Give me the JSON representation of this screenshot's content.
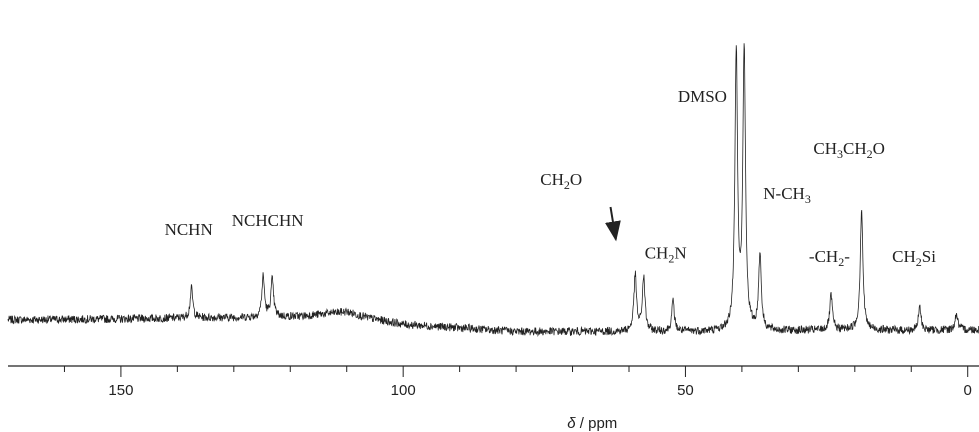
{
  "chart_data": {
    "type": "line",
    "title": "",
    "xlabel_symbol": "δ",
    "xlabel_unit": "/ ppm",
    "xlim": [
      170,
      -2
    ],
    "x_reversed": true,
    "grid": false,
    "legend": "none",
    "line_color": "#222222",
    "x_ticks": [
      150,
      100,
      50,
      0
    ],
    "x_minor_ticks": [
      160,
      140,
      130,
      120,
      110,
      90,
      80,
      70,
      60,
      40,
      30,
      20,
      10
    ],
    "baseline_points": [
      [
        170,
        0.18
      ],
      [
        150,
        0.19
      ],
      [
        140,
        0.2
      ],
      [
        125,
        0.21
      ],
      [
        118,
        0.22
      ],
      [
        112,
        0.26
      ],
      [
        110,
        0.27
      ],
      [
        106,
        0.2
      ],
      [
        100,
        0.13
      ],
      [
        80,
        0.05
      ],
      [
        65,
        0.05
      ],
      [
        55,
        0.05
      ],
      [
        42,
        0.05
      ],
      [
        30,
        0.06
      ],
      [
        20,
        0.07
      ],
      [
        10,
        0.06
      ],
      [
        0,
        0.07
      ],
      [
        -2,
        0.07
      ]
    ],
    "peaks": [
      {
        "ppm": 137.5,
        "height": 0.33
      },
      {
        "ppm": 124.8,
        "height": 0.45
      },
      {
        "ppm": 123.2,
        "height": 0.41
      },
      {
        "ppm": 58.9,
        "height": 0.62
      },
      {
        "ppm": 57.4,
        "height": 0.6
      },
      {
        "ppm": 52.2,
        "height": 0.33
      },
      {
        "ppm": 41.0,
        "height": 3.1
      },
      {
        "ppm": 39.6,
        "height": 3.1
      },
      {
        "ppm": 36.8,
        "height": 0.85
      },
      {
        "ppm": 24.2,
        "height": 0.38
      },
      {
        "ppm": 18.8,
        "height": 1.35
      },
      {
        "ppm": 8.5,
        "height": 0.26
      },
      {
        "ppm": 2.0,
        "height": 0.18
      }
    ],
    "annotations": [
      {
        "label_main": "NCHN",
        "label_sub": "",
        "label_tail": "",
        "ppm": 138,
        "level": 1.12
      },
      {
        "label_main": "NCHCHN",
        "label_sub": "",
        "label_tail": "",
        "ppm": 124,
        "level": 1.22
      },
      {
        "label_main": "CH",
        "label_sub": "2",
        "label_tail": "O",
        "ppm": 72,
        "level": 1.68
      },
      {
        "label_main": "CH",
        "label_sub": "2",
        "label_tail": "N",
        "ppm": 53.5,
        "level": 0.86
      },
      {
        "label_main": "DMSO",
        "label_sub": "",
        "label_tail": "",
        "ppm": 47,
        "level": 2.6
      },
      {
        "label_main": "N-CH",
        "label_sub": "3",
        "label_tail": "",
        "ppm": 32,
        "level": 1.52
      },
      {
        "label_main": "-CH",
        "label_sub": "2",
        "label_tail": "-",
        "ppm": 24.5,
        "level": 0.82
      },
      {
        "label_main": "CH",
        "label_sub": "3",
        "label_tail": "CH",
        "label_sub2": "2",
        "label_tail2": "O",
        "ppm": 21,
        "level": 2.02
      },
      {
        "label_main": "CH",
        "label_sub": "2",
        "label_tail": "Si",
        "ppm": 9.5,
        "level": 0.82
      }
    ],
    "arrow": {
      "from_ppm": 61.5,
      "from_level": 1.5,
      "to_ppm": 59.5,
      "to_level": 1.14
    }
  }
}
